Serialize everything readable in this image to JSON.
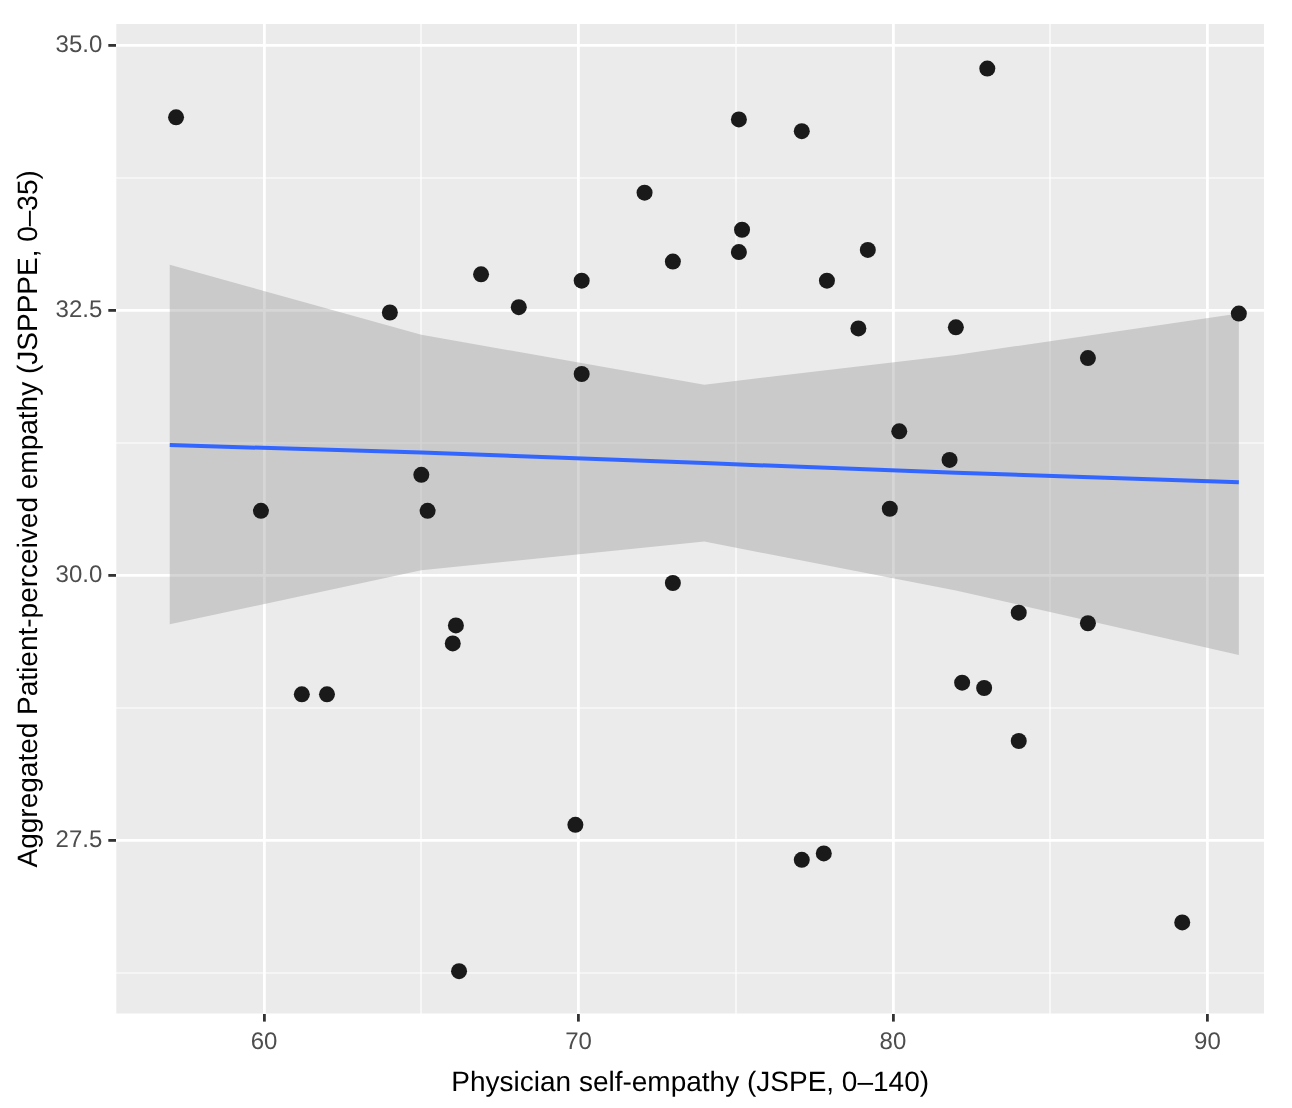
{
  "chart_data": {
    "type": "scatter",
    "xlabel": "Physician self-empathy (JSPE, 0–140)",
    "ylabel": "Aggregated Patient-perceived empathy (JSPPPE, 0–35)",
    "xlim": [
      55.3,
      91.8
    ],
    "ylim": [
      25.87,
      35.2
    ],
    "xticks": [
      60,
      {
        "value": 65,
        "label": null
      },
      70,
      {
        "value": 75,
        "label": null
      },
      80,
      {
        "value": 85,
        "label": null
      },
      90
    ],
    "yticks": [
      {
        "value": 26.25,
        "label": null
      },
      27.5,
      {
        "value": 28.75,
        "label": null
      },
      {
        "value": 30,
        "label": "30.0"
      },
      {
        "value": 31.25,
        "label": null
      },
      32.5,
      {
        "value": 33.75,
        "label": null
      },
      {
        "value": 35,
        "label": "35.0"
      }
    ],
    "grid": true,
    "legend": false,
    "series": [
      {
        "color": "#1a1a1a",
        "marker": "circle",
        "x": [
          57.2,
          59.9,
          64.0,
          66.9,
          68.1,
          70.1,
          70.1,
          65.0,
          65.2,
          72.1,
          75.1,
          77.1,
          83.0,
          75.2,
          75.1,
          73.0,
          79.2,
          77.9,
          78.9,
          82.0,
          91.0,
          86.2,
          80.2,
          81.8,
          79.9,
          66.1,
          66.0,
          61.2,
          62.0,
          69.9,
          66.2,
          73.0,
          84.0,
          86.2,
          82.2,
          82.9,
          84.0,
          77.1,
          77.8,
          89.2
        ],
        "values": [
          34.32,
          30.61,
          32.48,
          32.84,
          32.53,
          32.78,
          31.9,
          30.95,
          30.61,
          33.61,
          34.3,
          34.19,
          34.78,
          33.26,
          33.05,
          32.96,
          33.07,
          32.78,
          32.33,
          32.34,
          32.47,
          32.05,
          31.36,
          31.09,
          30.63,
          29.53,
          29.36,
          28.88,
          28.88,
          27.65,
          26.27,
          29.93,
          29.65,
          29.55,
          28.99,
          28.94,
          28.44,
          27.32,
          27.38,
          26.73
        ]
      },
      {
        "type": "line",
        "color": "#3366ff",
        "line_style": "solid",
        "marker": "none",
        "x": [
          57,
          65,
          74,
          82,
          91
        ],
        "values": [
          31.23,
          31.16,
          31.06,
          30.97,
          30.88
        ],
        "lower": [
          29.54,
          30.05,
          30.32,
          29.86,
          29.25
        ],
        "upper": [
          32.93,
          32.27,
          31.8,
          32.08,
          32.47
        ]
      }
    ]
  }
}
